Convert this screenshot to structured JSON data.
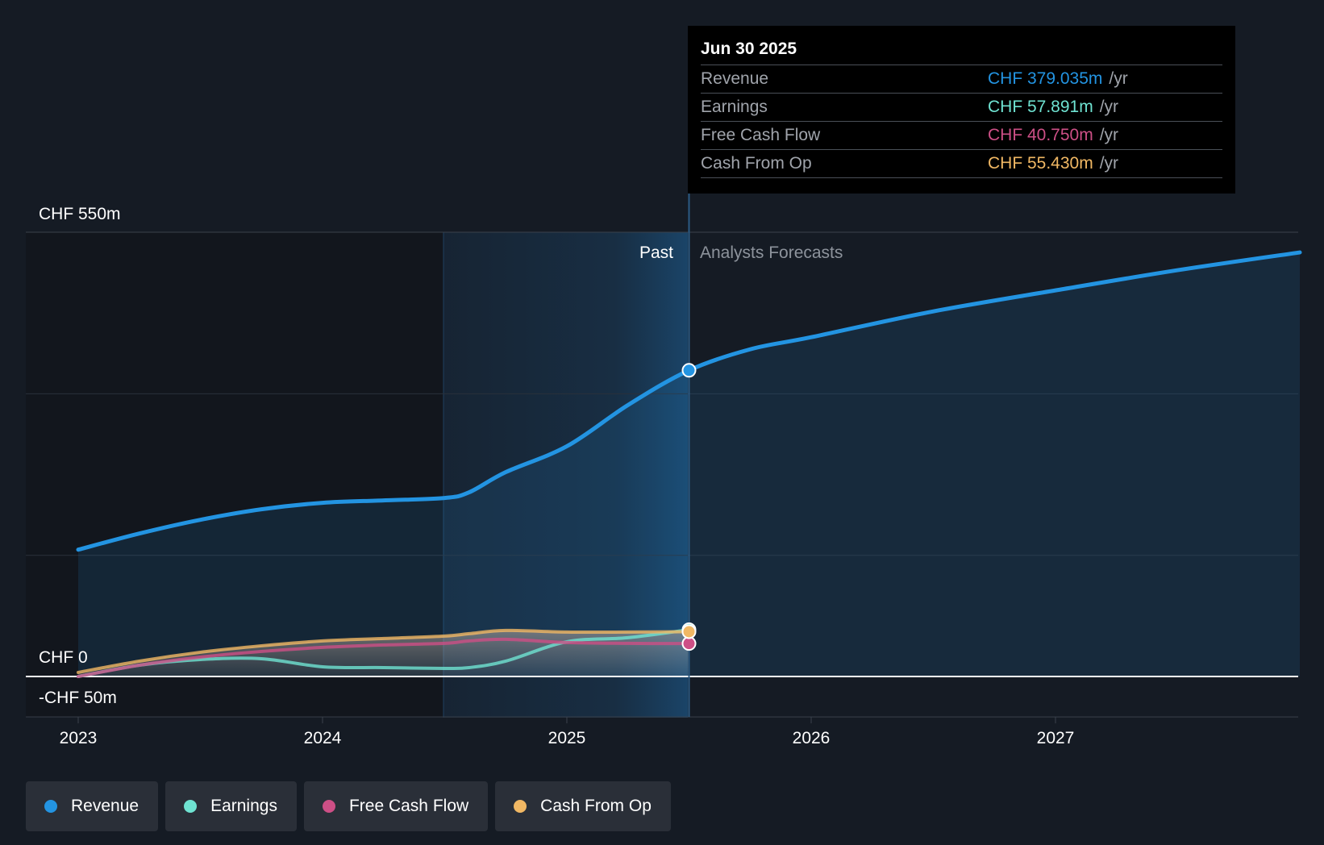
{
  "chart_data": {
    "type": "line",
    "y_axis": {
      "top_label": "CHF 550m",
      "zero_label": "CHF 0",
      "bottom_label": "-CHF 50m",
      "ylim": [
        -50,
        550
      ]
    },
    "x_axis": {
      "ticks": [
        "2023",
        "2024",
        "2025",
        "2026",
        "2027"
      ],
      "xlim": [
        2023.0,
        2028.0
      ]
    },
    "divider": {
      "x": 2025.5,
      "past_label": "Past",
      "forecast_label": "Analysts Forecasts"
    },
    "colors": {
      "revenue": "#2394e2",
      "earnings": "#6fe3d2",
      "fcf": "#cd4f86",
      "cfo": "#f1b864"
    },
    "series": [
      {
        "key": "revenue",
        "name": "Revenue",
        "x": [
          2023.0,
          2023.25,
          2023.5,
          2023.75,
          2024.0,
          2024.25,
          2024.5,
          2024.6,
          2024.75,
          2025.0,
          2025.25,
          2025.5,
          2025.75,
          2026.0,
          2026.5,
          2027.0,
          2027.5,
          2028.0
        ],
        "values": [
          157,
          177,
          194,
          207,
          215,
          218,
          221,
          228,
          253,
          285,
          336,
          379,
          405,
          420,
          452,
          478,
          503,
          525
        ]
      },
      {
        "key": "earnings",
        "name": "Earnings",
        "x": [
          2023.0,
          2023.25,
          2023.5,
          2023.75,
          2024.0,
          2024.25,
          2024.5,
          2024.6,
          2024.75,
          2025.0,
          2025.25,
          2025.5
        ],
        "values": [
          0,
          14,
          21,
          22,
          12,
          11,
          10,
          11,
          19,
          43,
          48,
          57.891
        ]
      },
      {
        "key": "fcf",
        "name": "Free Cash Flow",
        "x": [
          2023.0,
          2023.25,
          2023.5,
          2023.75,
          2024.0,
          2024.25,
          2024.5,
          2024.6,
          2024.75,
          2025.0,
          2025.25,
          2025.5
        ],
        "values": [
          0,
          14,
          24,
          31,
          36,
          39,
          41,
          44,
          46,
          42,
          41,
          40.75
        ]
      },
      {
        "key": "cfo",
        "name": "Cash From Op",
        "x": [
          2023.0,
          2023.25,
          2023.5,
          2023.75,
          2024.0,
          2024.25,
          2024.5,
          2024.6,
          2024.75,
          2025.0,
          2025.25,
          2025.5
        ],
        "values": [
          5,
          19,
          30,
          38,
          44,
          47,
          50,
          53,
          57,
          55,
          55,
          55.43
        ]
      }
    ]
  },
  "tooltip": {
    "date": "Jun 30 2025",
    "rows": [
      {
        "label": "Revenue",
        "value": "CHF 379.035m",
        "unit": "/yr"
      },
      {
        "label": "Earnings",
        "value": "CHF 57.891m",
        "unit": "/yr"
      },
      {
        "label": "Free Cash Flow",
        "value": "CHF 40.750m",
        "unit": "/yr"
      },
      {
        "label": "Cash From Op",
        "value": "CHF 55.430m",
        "unit": "/yr"
      }
    ]
  },
  "legend": [
    {
      "label": "Revenue",
      "icon": "dot-icon"
    },
    {
      "label": "Earnings",
      "icon": "dot-icon"
    },
    {
      "label": "Free Cash Flow",
      "icon": "dot-icon"
    },
    {
      "label": "Cash From Op",
      "icon": "dot-icon"
    }
  ]
}
